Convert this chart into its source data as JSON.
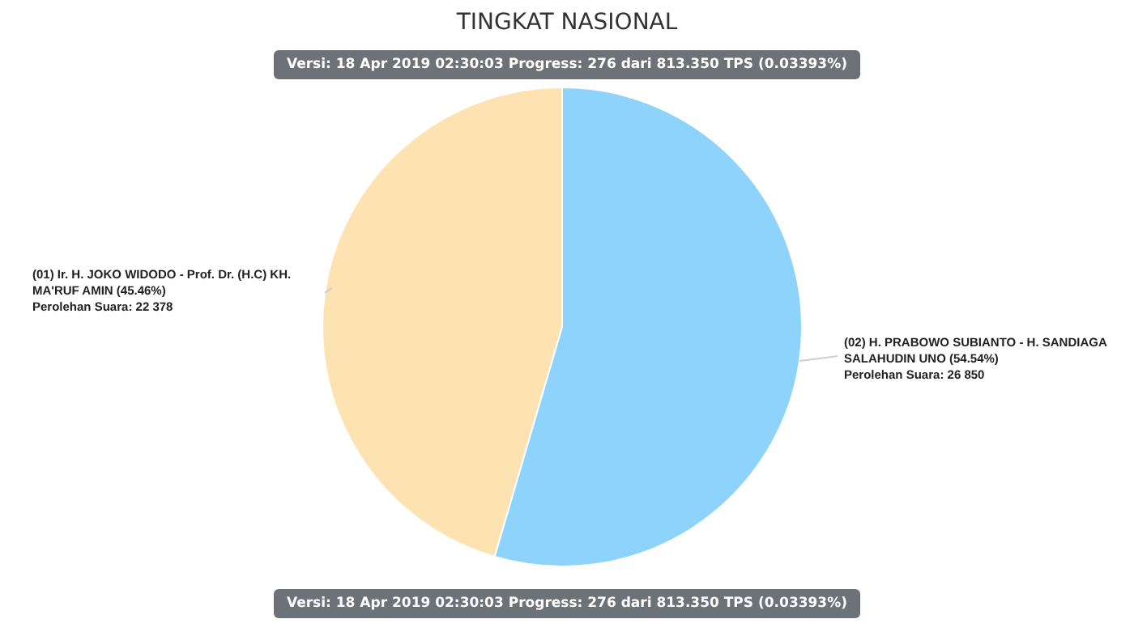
{
  "chart_data": {
    "type": "pie",
    "title": "TINGKAT NASIONAL",
    "categories": [
      "(01) Ir. H. JOKO WIDODO - Prof. Dr. (H.C) KH. MA'RUF AMIN (45.46%)",
      "(02) H. PRABOWO SUBIANTO - H. SANDIAGA SALAHUDIN UNO (54.54%)"
    ],
    "values": [
      22378,
      26850
    ],
    "value_labels": [
      "Perolehan Suara: 22 378",
      "Perolehan Suara: 26 850"
    ],
    "colors": [
      "#fde3b2",
      "#8ed3fc"
    ],
    "annotations": [
      "Versi: 18 Apr 2019 02:30:03 Progress: 276 dari 813.350 TPS (0.03393%)",
      "Versi: 18 Apr 2019 02:30:03 Progress: 276 dari 813.350 TPS (0.03393%)"
    ],
    "legend": false
  }
}
